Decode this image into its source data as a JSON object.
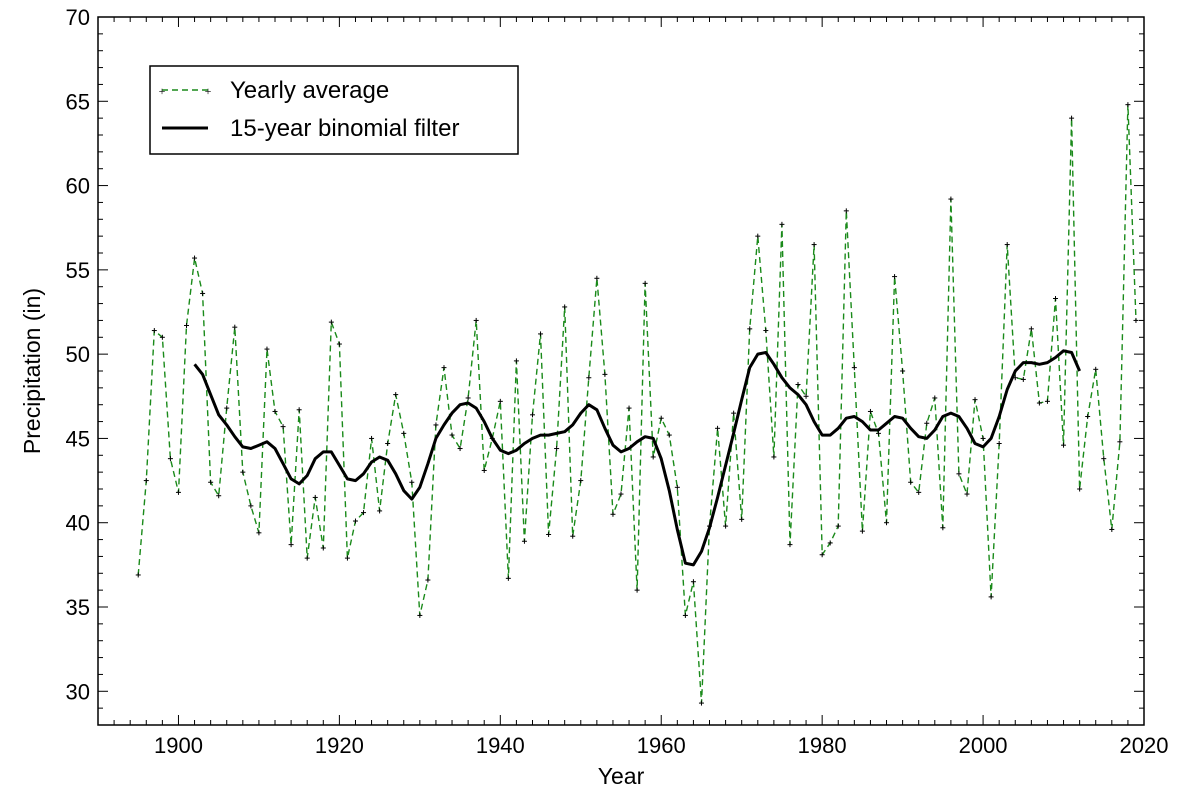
{
  "chart_data": {
    "type": "line",
    "xlabel": "Year",
    "ylabel": "Precipitation (in)",
    "xlim": [
      1890,
      2020
    ],
    "ylim": [
      28,
      70
    ],
    "xticks": [
      1900,
      1920,
      1940,
      1960,
      1980,
      2000,
      2020
    ],
    "yticks": [
      30,
      35,
      40,
      45,
      50,
      55,
      60,
      65,
      70
    ],
    "legend_position": "top-left",
    "series": [
      {
        "name": "Yearly average",
        "color": "#1a8a1a",
        "style": "dashed-with-markers",
        "x": [
          1895,
          1896,
          1897,
          1898,
          1899,
          1900,
          1901,
          1902,
          1903,
          1904,
          1905,
          1906,
          1907,
          1908,
          1909,
          1910,
          1911,
          1912,
          1913,
          1914,
          1915,
          1916,
          1917,
          1918,
          1919,
          1920,
          1921,
          1922,
          1923,
          1924,
          1925,
          1926,
          1927,
          1928,
          1929,
          1930,
          1931,
          1932,
          1933,
          1934,
          1935,
          1936,
          1937,
          1938,
          1939,
          1940,
          1941,
          1942,
          1943,
          1944,
          1945,
          1946,
          1947,
          1948,
          1949,
          1950,
          1951,
          1952,
          1953,
          1954,
          1955,
          1956,
          1957,
          1958,
          1959,
          1960,
          1961,
          1962,
          1963,
          1964,
          1965,
          1966,
          1967,
          1968,
          1969,
          1970,
          1971,
          1972,
          1973,
          1974,
          1975,
          1976,
          1977,
          1978,
          1979,
          1980,
          1981,
          1982,
          1983,
          1984,
          1985,
          1986,
          1987,
          1988,
          1989,
          1990,
          1991,
          1992,
          1993,
          1994,
          1995,
          1996,
          1997,
          1998,
          1999,
          2000,
          2001,
          2002,
          2003,
          2004,
          2005,
          2006,
          2007,
          2008,
          2009,
          2010,
          2011,
          2012,
          2013,
          2014,
          2015,
          2016,
          2017,
          2018,
          2019
        ],
        "y": [
          36.9,
          42.5,
          51.4,
          51.0,
          43.8,
          41.8,
          51.7,
          55.7,
          53.6,
          42.4,
          41.6,
          46.8,
          51.6,
          43.0,
          41.0,
          39.4,
          50.3,
          46.6,
          45.7,
          38.7,
          46.7,
          37.9,
          41.5,
          38.5,
          51.9,
          50.6,
          37.9,
          40.1,
          40.6,
          45.0,
          40.7,
          44.7,
          47.6,
          45.3,
          42.4,
          34.5,
          36.6,
          45.8,
          49.2,
          45.2,
          44.4,
          47.4,
          52.0,
          43.1,
          45.0,
          47.2,
          36.7,
          49.6,
          38.9,
          46.4,
          51.2,
          39.3,
          44.4,
          52.8,
          39.2,
          42.5,
          48.6,
          54.5,
          48.8,
          40.5,
          41.7,
          46.8,
          36.0,
          54.2,
          43.9,
          46.2,
          45.2,
          42.1,
          34.5,
          36.5,
          29.3,
          39.8,
          45.6,
          39.8,
          46.5,
          40.2,
          51.5,
          57.0,
          51.4,
          43.9,
          57.7,
          38.7,
          48.2,
          47.5,
          56.5,
          38.1,
          38.8,
          39.8,
          58.5,
          49.2,
          39.5,
          46.6,
          45.3,
          40.0,
          54.6,
          49.0,
          42.4,
          41.8,
          45.9,
          47.4,
          39.7,
          59.2,
          42.9,
          41.7,
          47.3,
          45.0,
          35.6,
          44.7,
          56.5,
          48.6,
          48.5,
          51.5,
          47.1,
          47.2,
          53.3,
          44.6,
          64.0,
          42.0,
          46.3,
          49.1,
          43.8,
          39.6,
          44.8,
          64.8,
          52.0
        ]
      },
      {
        "name": "15-year binomial filter",
        "color": "#000000",
        "style": "solid",
        "x": [
          1902,
          1903,
          1904,
          1905,
          1906,
          1907,
          1908,
          1909,
          1910,
          1911,
          1912,
          1913,
          1914,
          1915,
          1916,
          1917,
          1918,
          1919,
          1920,
          1921,
          1922,
          1923,
          1924,
          1925,
          1926,
          1927,
          1928,
          1929,
          1930,
          1931,
          1932,
          1933,
          1934,
          1935,
          1936,
          1937,
          1938,
          1939,
          1940,
          1941,
          1942,
          1943,
          1944,
          1945,
          1946,
          1947,
          1948,
          1949,
          1950,
          1951,
          1952,
          1953,
          1954,
          1955,
          1956,
          1957,
          1958,
          1959,
          1960,
          1961,
          1962,
          1963,
          1964,
          1965,
          1966,
          1967,
          1968,
          1969,
          1970,
          1971,
          1972,
          1973,
          1974,
          1975,
          1976,
          1977,
          1978,
          1979,
          1980,
          1981,
          1982,
          1983,
          1984,
          1985,
          1986,
          1987,
          1988,
          1989,
          1990,
          1991,
          1992,
          1993,
          1994,
          1995,
          1996,
          1997,
          1998,
          1999,
          2000,
          2001,
          2002,
          2003,
          2004,
          2005,
          2006,
          2007,
          2008,
          2009,
          2010,
          2011,
          2012
        ],
        "y": [
          49.4,
          48.8,
          47.6,
          46.4,
          45.8,
          45.1,
          44.5,
          44.4,
          44.6,
          44.8,
          44.4,
          43.5,
          42.6,
          42.3,
          42.8,
          43.8,
          44.2,
          44.2,
          43.4,
          42.6,
          42.5,
          42.9,
          43.6,
          43.9,
          43.7,
          42.9,
          41.9,
          41.4,
          42.1,
          43.5,
          45.0,
          45.8,
          46.5,
          47.0,
          47.1,
          46.8,
          46.0,
          45.0,
          44.3,
          44.1,
          44.3,
          44.7,
          45.0,
          45.2,
          45.2,
          45.3,
          45.4,
          45.8,
          46.5,
          47.0,
          46.7,
          45.6,
          44.6,
          44.2,
          44.4,
          44.8,
          45.1,
          45.0,
          43.8,
          41.9,
          39.6,
          37.6,
          37.5,
          38.3,
          39.7,
          41.5,
          43.4,
          45.3,
          47.3,
          49.2,
          50.0,
          50.1,
          49.4,
          48.6,
          48.0,
          47.6,
          47.0,
          46.0,
          45.2,
          45.2,
          45.6,
          46.2,
          46.3,
          46.0,
          45.5,
          45.5,
          45.9,
          46.3,
          46.2,
          45.6,
          45.1,
          45.0,
          45.5,
          46.3,
          46.5,
          46.3,
          45.6,
          44.7,
          44.5,
          45.0,
          46.3,
          47.9,
          49.0,
          49.5,
          49.5,
          49.4,
          49.5,
          49.8,
          50.2,
          50.1,
          49.0
        ]
      }
    ]
  }
}
